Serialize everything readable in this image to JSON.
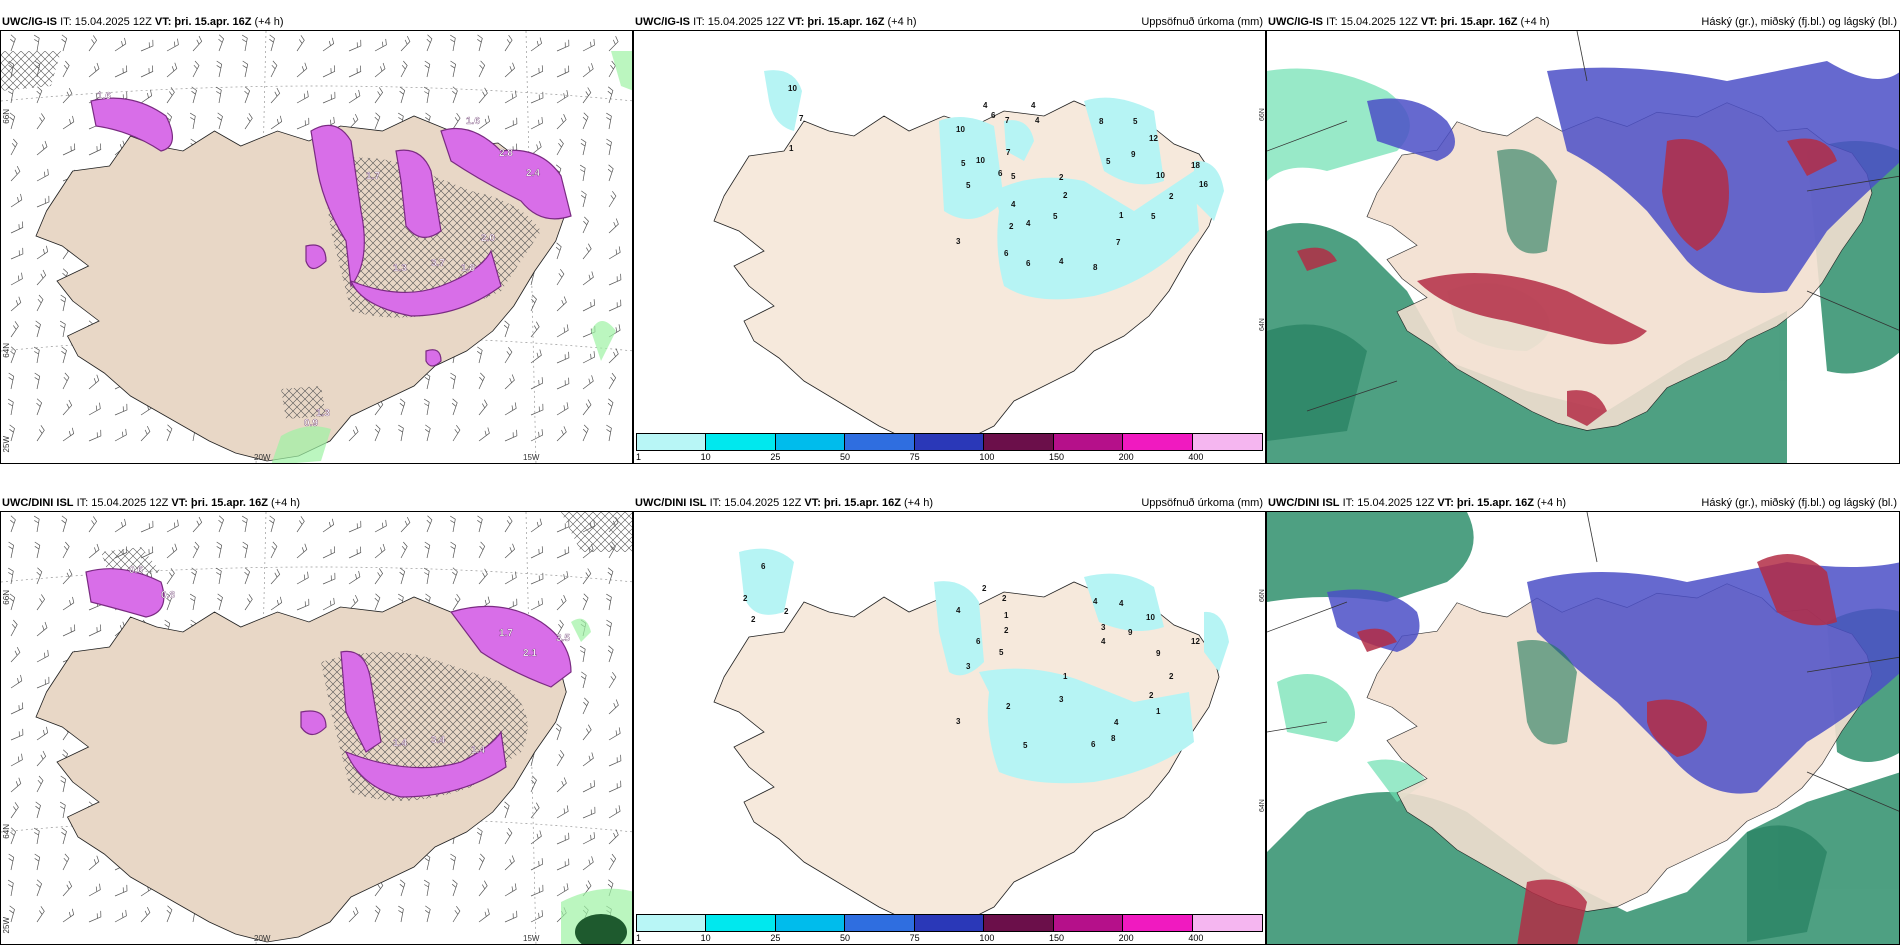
{
  "colors": {
    "land": "#f6e9dc",
    "precip_light": "#b6f4f4",
    "wind_purple": "#d86ee8",
    "wind_purple_dark": "#7a2b82",
    "cloud_high": "#2f8f6c",
    "cloud_mid": "#b32d45",
    "cloud_low": "#4b4fc7",
    "cloud_light": "#6ce0b0"
  },
  "panels": [
    {
      "model": "UWC/IG-IS",
      "it": "IT: 15.04.2025 12Z",
      "vt": "VT: þri. 15.apr. 16Z",
      "lead": "(+4 h)",
      "right_title": ""
    },
    {
      "model": "UWC/IG-IS",
      "it": "IT: 15.04.2025 12Z",
      "vt": "VT: þri. 15.apr. 16Z",
      "lead": "(+4 h)",
      "right_title": "Uppsöfnuð úrkoma (mm)"
    },
    {
      "model": "UWC/IG-IS",
      "it": "IT: 15.04.2025 12Z",
      "vt": "VT: þri. 15.apr. 16Z",
      "lead": "(+4 h)",
      "right_title": "Háský (gr.), miðský (fj.bl.) og lágský (bl.)"
    },
    {
      "model": "UWC/DINI ISL",
      "it": "IT: 15.04.2025 12Z",
      "vt": "VT: þri. 15.apr. 16Z",
      "lead": "(+4 h)",
      "right_title": ""
    },
    {
      "model": "UWC/DINI ISL",
      "it": "IT: 15.04.2025 12Z",
      "vt": "VT: þri. 15.apr. 16Z",
      "lead": "(+4 h)",
      "right_title": "Uppsöfnuð úrkoma (mm)"
    },
    {
      "model": "UWC/DINI ISL",
      "it": "IT: 15.04.2025 12Z",
      "vt": "VT: þri. 15.apr. 16Z",
      "lead": "(+4 h)",
      "right_title": "Háský (gr.), miðský (fj.bl.) og lágský (bl.)"
    }
  ],
  "axis_labels": {
    "lat_66": "66N",
    "lat_64": "64N",
    "lon_25": "25W",
    "lon_20": "20W",
    "lon_15": "15W"
  },
  "colorbar": {
    "ticks": [
      "1",
      "10",
      "25",
      "50",
      "75",
      "100",
      "150",
      "200",
      "400"
    ],
    "colors": [
      "#b8f6f6",
      "#00e8ee",
      "#00bcec",
      "#2f6ee0",
      "#2a38b8",
      "#6b0f4a",
      "#b5108a",
      "#f01ac0",
      "#f5b6f0"
    ]
  },
  "wind_labels_top": [
    {
      "t": "3.7",
      "x": 430,
      "y": 265
    },
    {
      "t": "1.8",
      "x": 460,
      "y": 270
    },
    {
      "t": "1.3",
      "x": 392,
      "y": 270
    },
    {
      "t": "2.0",
      "x": 480,
      "y": 240
    },
    {
      "t": "2.4",
      "x": 525,
      "y": 175
    },
    {
      "t": "2.8",
      "x": 498,
      "y": 155
    },
    {
      "t": "1.6",
      "x": 465,
      "y": 123
    },
    {
      "t": "1.7",
      "x": 365,
      "y": 178
    },
    {
      "t": "1.6",
      "x": 96,
      "y": 98
    },
    {
      "t": "0.9",
      "x": 303,
      "y": 425
    },
    {
      "t": "1.3",
      "x": 315,
      "y": 415
    }
  ],
  "wind_labels_bottom": [
    {
      "t": "3.4",
      "x": 430,
      "y": 742
    },
    {
      "t": "1.4",
      "x": 392,
      "y": 745
    },
    {
      "t": "1.4",
      "x": 470,
      "y": 752
    },
    {
      "t": "1.7",
      "x": 498,
      "y": 635
    },
    {
      "t": "2.1",
      "x": 522,
      "y": 655
    },
    {
      "t": "3.5",
      "x": 555,
      "y": 640
    },
    {
      "t": "0.8",
      "x": 160,
      "y": 597
    },
    {
      "t": "0.6",
      "x": 128,
      "y": 572
    }
  ],
  "precip_labels_top": [
    {
      "t": "10",
      "x": 787,
      "y": 90
    },
    {
      "t": "7",
      "x": 798,
      "y": 120
    },
    {
      "t": "1",
      "x": 788,
      "y": 150
    },
    {
      "t": "10",
      "x": 955,
      "y": 131
    },
    {
      "t": "5",
      "x": 960,
      "y": 165
    },
    {
      "t": "10",
      "x": 975,
      "y": 162
    },
    {
      "t": "5",
      "x": 965,
      "y": 187
    },
    {
      "t": "4",
      "x": 982,
      "y": 107
    },
    {
      "t": "6",
      "x": 990,
      "y": 117
    },
    {
      "t": "7",
      "x": 1004,
      "y": 122
    },
    {
      "t": "4",
      "x": 1030,
      "y": 107
    },
    {
      "t": "4",
      "x": 1034,
      "y": 122
    },
    {
      "t": "7",
      "x": 1005,
      "y": 154
    },
    {
      "t": "6",
      "x": 997,
      "y": 175
    },
    {
      "t": "5",
      "x": 1010,
      "y": 178
    },
    {
      "t": "4",
      "x": 1010,
      "y": 206
    },
    {
      "t": "2",
      "x": 1058,
      "y": 179
    },
    {
      "t": "2",
      "x": 1062,
      "y": 197
    },
    {
      "t": "5",
      "x": 1052,
      "y": 218
    },
    {
      "t": "2",
      "x": 1008,
      "y": 228
    },
    {
      "t": "4",
      "x": 1025,
      "y": 225
    },
    {
      "t": "8",
      "x": 1098,
      "y": 123
    },
    {
      "t": "5",
      "x": 1132,
      "y": 123
    },
    {
      "t": "12",
      "x": 1148,
      "y": 140
    },
    {
      "t": "5",
      "x": 1105,
      "y": 163
    },
    {
      "t": "9",
      "x": 1130,
      "y": 156
    },
    {
      "t": "10",
      "x": 1155,
      "y": 177
    },
    {
      "t": "18",
      "x": 1190,
      "y": 167
    },
    {
      "t": "16",
      "x": 1198,
      "y": 186
    },
    {
      "t": "2",
      "x": 1168,
      "y": 198
    },
    {
      "t": "1",
      "x": 1118,
      "y": 217
    },
    {
      "t": "5",
      "x": 1150,
      "y": 218
    },
    {
      "t": "3",
      "x": 955,
      "y": 243
    },
    {
      "t": "7",
      "x": 1115,
      "y": 244
    },
    {
      "t": "6",
      "x": 1003,
      "y": 255
    },
    {
      "t": "6",
      "x": 1025,
      "y": 265
    },
    {
      "t": "8",
      "x": 1092,
      "y": 269
    },
    {
      "t": "4",
      "x": 1058,
      "y": 263
    }
  ],
  "precip_labels_bottom": [
    {
      "t": "6",
      "x": 760,
      "y": 568
    },
    {
      "t": "2",
      "x": 742,
      "y": 600
    },
    {
      "t": "2",
      "x": 750,
      "y": 621
    },
    {
      "t": "2",
      "x": 783,
      "y": 613
    },
    {
      "t": "2",
      "x": 981,
      "y": 590
    },
    {
      "t": "2",
      "x": 1001,
      "y": 600
    },
    {
      "t": "1",
      "x": 1003,
      "y": 617
    },
    {
      "t": "4",
      "x": 955,
      "y": 612
    },
    {
      "t": "2",
      "x": 1003,
      "y": 632
    },
    {
      "t": "6",
      "x": 975,
      "y": 643
    },
    {
      "t": "5",
      "x": 998,
      "y": 654
    },
    {
      "t": "3",
      "x": 965,
      "y": 668
    },
    {
      "t": "4",
      "x": 1092,
      "y": 603
    },
    {
      "t": "4",
      "x": 1118,
      "y": 605
    },
    {
      "t": "10",
      "x": 1145,
      "y": 619
    },
    {
      "t": "3",
      "x": 1100,
      "y": 629
    },
    {
      "t": "9",
      "x": 1127,
      "y": 634
    },
    {
      "t": "4",
      "x": 1100,
      "y": 643
    },
    {
      "t": "12",
      "x": 1190,
      "y": 643
    },
    {
      "t": "9",
      "x": 1155,
      "y": 655
    },
    {
      "t": "1",
      "x": 1062,
      "y": 678
    },
    {
      "t": "2",
      "x": 1168,
      "y": 678
    },
    {
      "t": "2",
      "x": 1148,
      "y": 697
    },
    {
      "t": "1",
      "x": 1155,
      "y": 713
    },
    {
      "t": "3",
      "x": 1058,
      "y": 701
    },
    {
      "t": "2",
      "x": 1005,
      "y": 708
    },
    {
      "t": "3",
      "x": 955,
      "y": 723
    },
    {
      "t": "5",
      "x": 1022,
      "y": 747
    },
    {
      "t": "6",
      "x": 1090,
      "y": 746
    },
    {
      "t": "4",
      "x": 1113,
      "y": 724
    },
    {
      "t": "8",
      "x": 1110,
      "y": 740
    }
  ]
}
